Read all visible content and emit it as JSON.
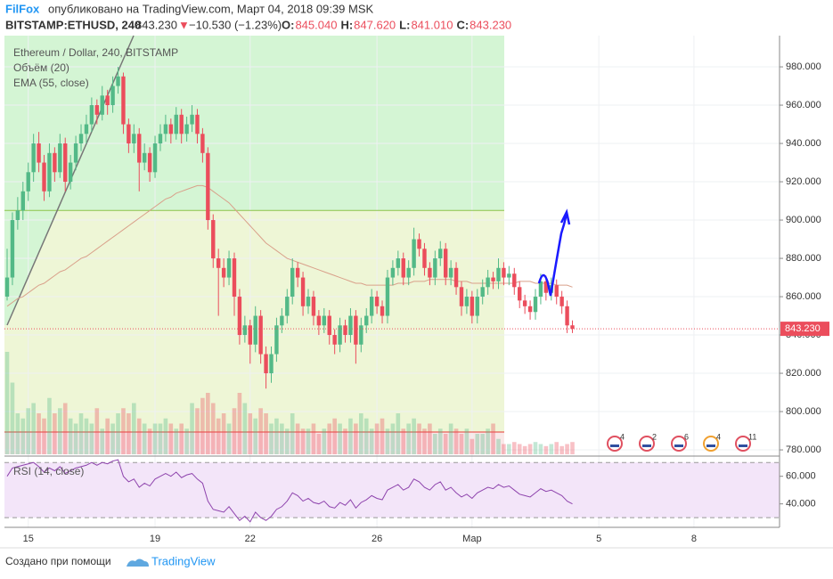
{
  "header": {
    "author": "FilFox",
    "published": "опубликовано на TradingView.com, Март 04, 2018 09:39 MSK",
    "symbol": "BITSTAMP:ETHUSD, 240",
    "last": "843.230",
    "arrow": "▼",
    "change": "−10.530 (−1.23%)",
    "ohlc": [
      {
        "k": "O:",
        "v": "845.040"
      },
      {
        "k": "H:",
        "v": "847.620"
      },
      {
        "k": "L:",
        "v": "841.010"
      },
      {
        "k": "C:",
        "v": "843.230"
      }
    ]
  },
  "chart_data": {
    "type": "candlestick",
    "legend": [
      "Ethereum / Dollar, 240, BITSTAMP",
      "Объём (20)",
      "EMA (55, close)"
    ],
    "up_color": "#53b987",
    "down_color": "#eb4d5c",
    "ema_color": "#d9a08a",
    "ylim": [
      777.7,
      996.3
    ],
    "yticks": [
      {
        "value": 780,
        "label": "780.000"
      },
      {
        "value": 800,
        "label": "800.000"
      },
      {
        "value": 820,
        "label": "820.000"
      },
      {
        "value": 840,
        "label": "840.000"
      },
      {
        "value": 860,
        "label": "860.000"
      },
      {
        "value": 880,
        "label": "880.000"
      },
      {
        "value": 900,
        "label": "900.000"
      },
      {
        "value": 920,
        "label": "920.000"
      },
      {
        "value": 940,
        "label": "940.000"
      },
      {
        "value": 960,
        "label": "960.000"
      },
      {
        "value": 980,
        "label": "980.000"
      }
    ],
    "xticks": [
      {
        "value": 4,
        "label": "15"
      },
      {
        "value": 28,
        "label": "19"
      },
      {
        "value": 46,
        "label": "22"
      },
      {
        "value": 70,
        "label": "26"
      },
      {
        "value": 88,
        "label": "Мар"
      },
      {
        "value": 112,
        "label": "5"
      },
      {
        "value": 130,
        "label": "8"
      }
    ],
    "price_label": "843.230",
    "hlines": [
      {
        "value": 905,
        "color": "#8bc34a"
      },
      {
        "value": 789.3,
        "color": "#e53935"
      }
    ],
    "candles": [
      [
        860,
        885,
        858,
        870
      ],
      [
        870,
        904,
        866,
        900
      ],
      [
        900,
        912,
        895,
        905
      ],
      [
        905,
        920,
        900,
        915
      ],
      [
        915,
        930,
        910,
        925
      ],
      [
        925,
        945,
        920,
        940
      ],
      [
        940,
        946,
        925,
        930
      ],
      [
        930,
        934,
        910,
        915
      ],
      [
        915,
        940,
        912,
        935
      ],
      [
        935,
        938,
        920,
        925
      ],
      [
        925,
        945,
        922,
        940
      ],
      [
        940,
        943,
        915,
        920
      ],
      [
        920,
        934,
        916,
        930
      ],
      [
        930,
        944,
        926,
        940
      ],
      [
        940,
        950,
        936,
        945
      ],
      [
        945,
        955,
        940,
        950
      ],
      [
        950,
        964,
        946,
        960
      ],
      [
        960,
        963,
        950,
        955
      ],
      [
        955,
        970,
        952,
        965
      ],
      [
        965,
        968,
        955,
        960
      ],
      [
        960,
        975,
        956,
        970
      ],
      [
        970,
        980,
        966,
        975
      ],
      [
        975,
        977,
        945,
        950
      ],
      [
        950,
        953,
        935,
        940
      ],
      [
        940,
        950,
        935,
        945
      ],
      [
        945,
        948,
        915,
        930
      ],
      [
        930,
        940,
        926,
        935
      ],
      [
        935,
        938,
        920,
        925
      ],
      [
        925,
        944,
        922,
        940
      ],
      [
        940,
        950,
        936,
        945
      ],
      [
        945,
        955,
        941,
        950
      ],
      [
        950,
        953,
        940,
        945
      ],
      [
        945,
        959,
        942,
        955
      ],
      [
        955,
        958,
        940,
        945
      ],
      [
        945,
        954,
        941,
        950
      ],
      [
        950,
        960,
        946,
        955
      ],
      [
        955,
        958,
        940,
        945
      ],
      [
        945,
        948,
        930,
        935
      ],
      [
        935,
        938,
        895,
        900
      ],
      [
        900,
        903,
        875,
        880
      ],
      [
        880,
        885,
        850,
        875
      ],
      [
        875,
        880,
        865,
        870
      ],
      [
        870,
        884,
        866,
        880
      ],
      [
        880,
        883,
        850,
        860
      ],
      [
        860,
        864,
        835,
        840
      ],
      [
        840,
        850,
        836,
        845
      ],
      [
        845,
        848,
        825,
        835
      ],
      [
        835,
        855,
        831,
        850
      ],
      [
        850,
        853,
        825,
        830
      ],
      [
        830,
        834,
        812,
        820
      ],
      [
        820,
        834,
        815,
        830
      ],
      [
        830,
        849,
        826,
        845
      ],
      [
        845,
        854,
        841,
        850
      ],
      [
        850,
        864,
        846,
        860
      ],
      [
        860,
        880,
        856,
        875
      ],
      [
        875,
        878,
        865,
        870
      ],
      [
        870,
        873,
        850,
        855
      ],
      [
        855,
        864,
        851,
        860
      ],
      [
        860,
        863,
        845,
        850
      ],
      [
        850,
        853,
        840,
        845
      ],
      [
        845,
        854,
        841,
        850
      ],
      [
        850,
        853,
        835,
        840
      ],
      [
        840,
        843,
        830,
        835
      ],
      [
        835,
        849,
        831,
        845
      ],
      [
        845,
        848,
        836,
        840
      ],
      [
        840,
        854,
        836,
        850
      ],
      [
        850,
        853,
        825,
        835
      ],
      [
        835,
        849,
        831,
        845
      ],
      [
        845,
        854,
        841,
        850
      ],
      [
        850,
        864,
        846,
        860
      ],
      [
        860,
        863,
        851,
        855
      ],
      [
        855,
        858,
        846,
        850
      ],
      [
        850,
        874,
        846,
        870
      ],
      [
        870,
        879,
        866,
        875
      ],
      [
        875,
        884,
        871,
        880
      ],
      [
        880,
        883,
        866,
        870
      ],
      [
        870,
        879,
        866,
        875
      ],
      [
        875,
        896,
        871,
        890
      ],
      [
        890,
        893,
        881,
        885
      ],
      [
        885,
        888,
        871,
        875
      ],
      [
        875,
        878,
        866,
        870
      ],
      [
        870,
        884,
        866,
        880
      ],
      [
        880,
        889,
        876,
        885
      ],
      [
        885,
        888,
        866,
        870
      ],
      [
        870,
        879,
        866,
        875
      ],
      [
        875,
        878,
        861,
        865
      ],
      [
        865,
        868,
        850,
        855
      ],
      [
        855,
        864,
        851,
        860
      ],
      [
        860,
        863,
        846,
        850
      ],
      [
        850,
        864,
        846,
        860
      ],
      [
        860,
        869,
        856,
        865
      ],
      [
        865,
        874,
        861,
        870
      ],
      [
        870,
        873,
        864,
        868
      ],
      [
        868,
        880,
        864,
        875
      ],
      [
        875,
        878,
        866,
        870
      ],
      [
        870,
        876,
        866,
        872
      ],
      [
        872,
        875,
        861,
        865
      ],
      [
        865,
        868,
        854,
        858
      ],
      [
        858,
        861,
        851,
        855
      ],
      [
        855,
        858,
        848,
        852
      ],
      [
        852,
        864,
        848,
        860
      ],
      [
        860,
        872,
        856,
        868
      ],
      [
        868,
        871,
        858,
        862
      ],
      [
        862,
        870,
        858,
        866
      ],
      [
        866,
        869,
        856,
        860
      ],
      [
        860,
        863,
        851,
        855
      ],
      [
        855,
        858,
        841,
        845
      ],
      [
        845.04,
        847.62,
        841.01,
        843.23
      ]
    ],
    "ema": [
      855,
      857,
      859,
      860,
      862,
      864,
      866,
      867,
      869,
      871,
      873,
      874,
      876,
      878,
      880,
      881,
      883,
      885,
      887,
      889,
      891,
      893,
      895,
      897,
      899,
      901,
      903,
      905,
      907,
      909,
      911,
      912,
      914,
      915,
      916,
      917,
      918,
      918,
      917,
      915,
      913,
      911,
      909,
      906,
      903,
      900,
      897,
      894,
      891,
      888,
      886,
      884,
      882,
      880,
      879,
      878,
      877,
      876,
      875,
      874,
      873,
      872,
      871,
      870,
      869,
      868,
      867,
      867,
      866,
      866,
      866,
      866,
      866,
      866,
      867,
      867,
      867,
      868,
      868,
      868,
      869,
      869,
      869,
      869,
      869,
      868,
      868,
      868,
      867,
      867,
      867,
      867,
      867,
      867,
      867,
      867,
      867,
      868,
      868,
      868,
      867,
      867,
      867,
      867,
      866,
      866,
      866,
      865
    ],
    "volume": [
      100,
      70,
      40,
      35,
      45,
      50,
      40,
      35,
      55,
      40,
      45,
      50,
      35,
      30,
      40,
      35,
      30,
      45,
      25,
      35,
      30,
      40,
      45,
      40,
      50,
      35,
      30,
      25,
      30,
      30,
      35,
      30,
      25,
      30,
      25,
      50,
      45,
      55,
      60,
      50,
      35,
      40,
      30,
      45,
      60,
      50,
      40,
      35,
      45,
      40,
      30,
      35,
      30,
      25,
      40,
      30,
      25,
      25,
      30,
      20,
      25,
      30,
      35,
      30,
      25,
      35,
      30,
      40,
      35,
      25,
      30,
      35,
      25,
      30,
      40,
      25,
      30,
      35,
      30,
      25,
      30,
      20,
      25,
      20,
      30,
      25,
      20,
      25,
      15,
      20,
      20,
      25,
      30,
      15,
      10,
      10,
      12,
      10,
      8,
      10,
      12,
      10,
      8,
      10,
      12,
      8,
      10,
      12
    ],
    "rsi_label": "RSI (14, close)",
    "rsi_color": "#8e44ad",
    "rsi_ylim": [
      23,
      74
    ],
    "rsi_yticks": [
      {
        "value": 60,
        "label": "60.000"
      },
      {
        "value": 40,
        "label": "40.000"
      }
    ],
    "rsi_bands": [
      70,
      30
    ],
    "rsi": [
      60,
      66,
      67,
      68,
      69,
      70,
      67,
      63,
      66,
      64,
      67,
      62,
      64,
      66,
      67,
      68,
      70,
      68,
      70,
      69,
      71,
      72,
      60,
      56,
      58,
      52,
      55,
      53,
      58,
      60,
      62,
      60,
      63,
      59,
      61,
      62,
      58,
      55,
      42,
      36,
      35,
      34,
      38,
      33,
      28,
      31,
      27,
      34,
      30,
      28,
      31,
      36,
      38,
      42,
      48,
      46,
      42,
      44,
      41,
      40,
      42,
      38,
      37,
      41,
      39,
      43,
      37,
      41,
      43,
      46,
      44,
      43,
      50,
      52,
      54,
      50,
      52,
      58,
      56,
      52,
      50,
      54,
      56,
      50,
      52,
      48,
      45,
      47,
      44,
      48,
      50,
      52,
      51,
      54,
      52,
      53,
      50,
      47,
      46,
      45,
      48,
      51,
      49,
      50,
      48,
      46,
      42,
      40
    ],
    "events": [
      "4",
      "2",
      "6",
      "4",
      "11"
    ]
  },
  "footer": {
    "made_with": "Создано при помощи",
    "brand": "TradingView"
  }
}
